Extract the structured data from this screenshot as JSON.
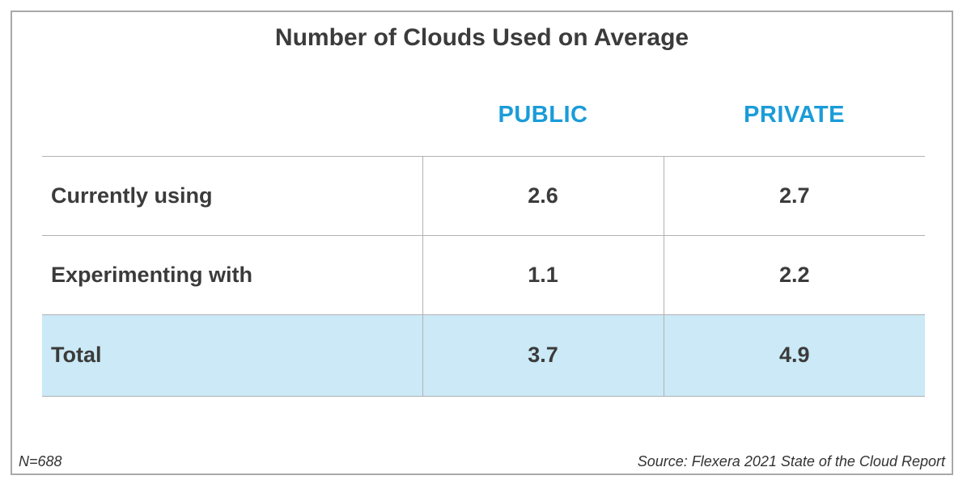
{
  "title": "Number of Clouds Used on Average",
  "colors": {
    "header_blue": "#1a9cd9",
    "total_row_bg": "#cbe9f6",
    "text_dark": "#3b3b3b",
    "grid_line": "#b2b2b2",
    "frame_border": "#a9a9a9"
  },
  "table": {
    "column_headers": [
      "PUBLIC",
      "PRIVATE"
    ],
    "rows": [
      {
        "label": "Currently using",
        "public": "2.6",
        "private": "2.7",
        "highlight": false
      },
      {
        "label": "Experimenting with",
        "public": "1.1",
        "private": "2.2",
        "highlight": false
      },
      {
        "label": "Total",
        "public": "3.7",
        "private": "4.9",
        "highlight": true
      }
    ]
  },
  "footer": {
    "sample_size": "N=688",
    "source": "Source: Flexera 2021 State of the Cloud Report"
  },
  "chart_data": {
    "type": "table",
    "title": "Number of Clouds Used on Average",
    "columns": [
      "",
      "PUBLIC",
      "PRIVATE"
    ],
    "rows": [
      [
        "Currently using",
        2.6,
        2.7
      ],
      [
        "Experimenting with",
        1.1,
        2.2
      ],
      [
        "Total",
        3.7,
        4.9
      ]
    ],
    "highlighted_row": "Total",
    "notes": {
      "sample_size": "N=688",
      "source": "Source: Flexera 2021 State of the Cloud Report"
    }
  }
}
